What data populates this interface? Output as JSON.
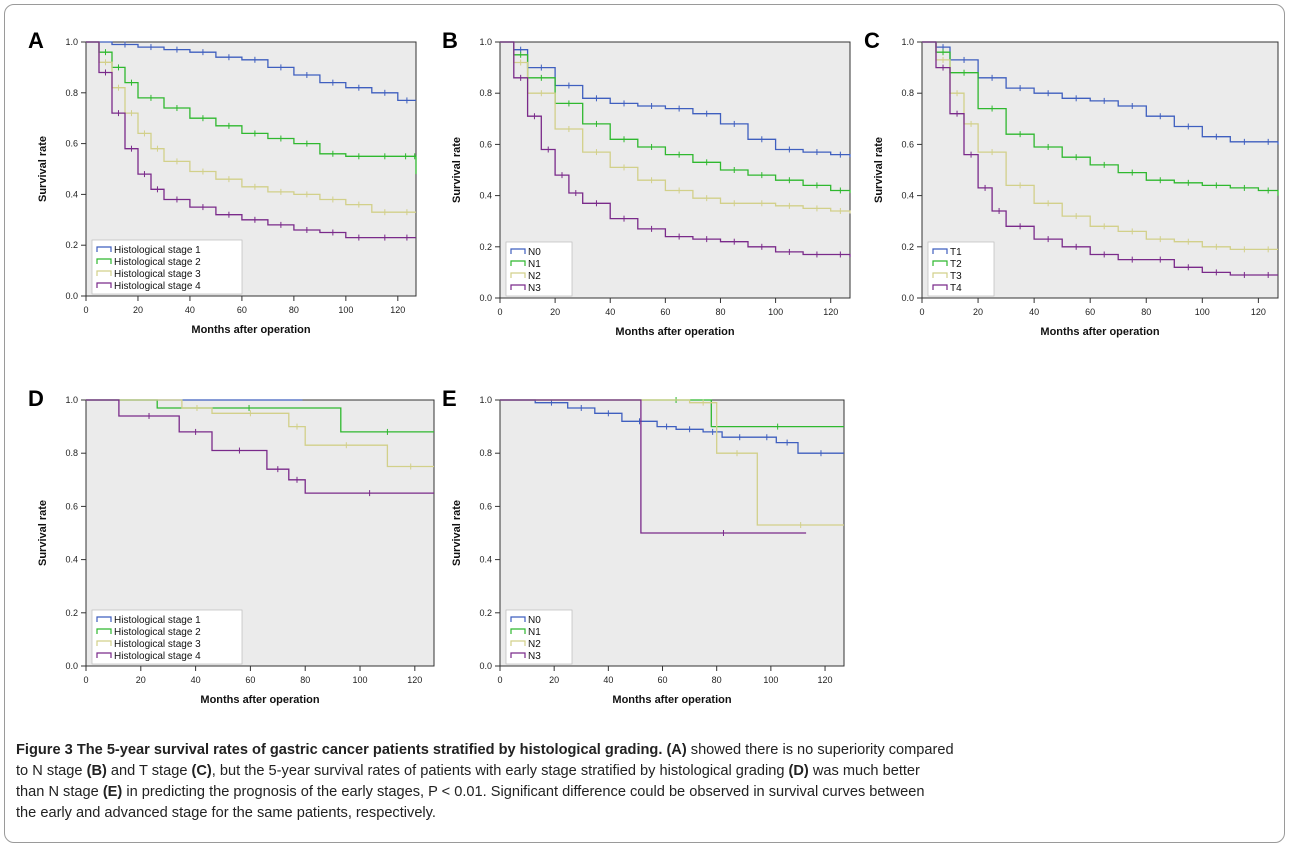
{
  "figure": {
    "caption_lines": [
      [
        {
          "b": true,
          "t": "Figure 3 The 5-year survival rates of gastric cancer patients stratified by histological grading."
        },
        {
          "b": true,
          "t": " (A)"
        },
        {
          "b": false,
          "t": " showed there is no superiority compared"
        }
      ],
      [
        {
          "b": false,
          "t": "to N stage "
        },
        {
          "b": true,
          "t": "(B)"
        },
        {
          "b": false,
          "t": " and T stage "
        },
        {
          "b": true,
          "t": "(C)"
        },
        {
          "b": false,
          "t": ", but the 5-year survival rates of patients with early stage stratified by histological grading "
        },
        {
          "b": true,
          "t": "(D)"
        },
        {
          "b": false,
          "t": " was much better"
        }
      ],
      [
        {
          "b": false,
          "t": "than N stage "
        },
        {
          "b": true,
          "t": "(E)"
        },
        {
          "b": false,
          "t": " in predicting the prognosis of the early stages, P < 0.01. Significant difference could be observed in survival curves between"
        }
      ],
      [
        {
          "b": false,
          "t": "the early and advanced stage for the same patients, respectively."
        }
      ]
    ]
  },
  "colors": {
    "s1": "#3f5fbf",
    "s2": "#2fb82f",
    "s3": "#d2d08a",
    "s4": "#7a2a8a",
    "plot_bg": "#ebebeb"
  },
  "chart_data": [
    {
      "panel": "A",
      "type": "line",
      "step": true,
      "xlabel": "Months after operation",
      "ylabel": "Survival rate",
      "xlim": [
        0,
        127
      ],
      "ylim": [
        0,
        1.0
      ],
      "xticks": [
        "0",
        "20",
        "40",
        "60",
        "80",
        "100",
        "120"
      ],
      "yticks": [
        "0.0",
        "0.2",
        "0.4",
        "0.6",
        "0.8",
        "1.0"
      ],
      "legend_position": "bottom-left",
      "series": [
        {
          "name": "Histological stage 1",
          "x": [
            0,
            10,
            20,
            30,
            40,
            50,
            60,
            70,
            80,
            90,
            100,
            110,
            120,
            127
          ],
          "y": [
            1.0,
            0.99,
            0.98,
            0.97,
            0.96,
            0.94,
            0.93,
            0.9,
            0.87,
            0.84,
            0.82,
            0.8,
            0.77,
            0.77
          ]
        },
        {
          "name": "Histological stage 2",
          "x": [
            0,
            5,
            10,
            15,
            20,
            30,
            40,
            50,
            60,
            70,
            80,
            90,
            100,
            110,
            120,
            126,
            127
          ],
          "y": [
            1.0,
            0.96,
            0.9,
            0.84,
            0.78,
            0.74,
            0.7,
            0.67,
            0.64,
            0.62,
            0.6,
            0.56,
            0.55,
            0.55,
            0.55,
            0.55,
            0.48
          ]
        },
        {
          "name": "Histological stage 3",
          "x": [
            0,
            5,
            10,
            15,
            20,
            25,
            30,
            40,
            50,
            60,
            70,
            80,
            90,
            100,
            110,
            120,
            127
          ],
          "y": [
            1.0,
            0.92,
            0.82,
            0.72,
            0.64,
            0.58,
            0.53,
            0.49,
            0.46,
            0.43,
            0.41,
            0.4,
            0.38,
            0.36,
            0.33,
            0.33,
            0.33
          ]
        },
        {
          "name": "Histological stage 4",
          "x": [
            0,
            5,
            10,
            15,
            20,
            25,
            30,
            40,
            50,
            60,
            70,
            80,
            90,
            100,
            110,
            120,
            127
          ],
          "y": [
            1.0,
            0.88,
            0.72,
            0.58,
            0.48,
            0.42,
            0.38,
            0.35,
            0.32,
            0.3,
            0.28,
            0.26,
            0.25,
            0.23,
            0.23,
            0.23,
            0.23
          ]
        }
      ]
    },
    {
      "panel": "B",
      "type": "line",
      "step": true,
      "xlabel": "Months after operation",
      "ylabel": "Survival rate",
      "xlim": [
        0,
        127
      ],
      "ylim": [
        0,
        1.0
      ],
      "xticks": [
        "0",
        "20",
        "40",
        "60",
        "80",
        "100",
        "120"
      ],
      "yticks": [
        "0.0",
        "0.2",
        "0.4",
        "0.6",
        "0.8",
        "1.0"
      ],
      "legend_position": "bottom-left",
      "series": [
        {
          "name": "N0",
          "x": [
            0,
            5,
            10,
            20,
            30,
            40,
            50,
            60,
            70,
            80,
            90,
            100,
            110,
            120,
            127
          ],
          "y": [
            1.0,
            0.97,
            0.9,
            0.83,
            0.78,
            0.76,
            0.75,
            0.74,
            0.72,
            0.68,
            0.62,
            0.58,
            0.57,
            0.56,
            0.55
          ]
        },
        {
          "name": "N1",
          "x": [
            0,
            5,
            10,
            20,
            30,
            40,
            50,
            60,
            70,
            80,
            90,
            100,
            110,
            120,
            127
          ],
          "y": [
            1.0,
            0.95,
            0.86,
            0.76,
            0.68,
            0.62,
            0.59,
            0.56,
            0.53,
            0.5,
            0.48,
            0.46,
            0.44,
            0.42,
            0.41
          ]
        },
        {
          "name": "N2",
          "x": [
            0,
            5,
            10,
            20,
            30,
            40,
            50,
            60,
            70,
            80,
            90,
            100,
            110,
            120,
            127
          ],
          "y": [
            1.0,
            0.92,
            0.8,
            0.66,
            0.57,
            0.51,
            0.46,
            0.42,
            0.39,
            0.37,
            0.37,
            0.36,
            0.35,
            0.34,
            0.33
          ]
        },
        {
          "name": "N3",
          "x": [
            0,
            5,
            10,
            15,
            20,
            25,
            30,
            40,
            50,
            60,
            70,
            80,
            90,
            100,
            110,
            120,
            127
          ],
          "y": [
            1.0,
            0.86,
            0.71,
            0.58,
            0.48,
            0.41,
            0.37,
            0.31,
            0.27,
            0.24,
            0.23,
            0.22,
            0.2,
            0.18,
            0.17,
            0.17,
            0.16
          ]
        }
      ]
    },
    {
      "panel": "C",
      "type": "line",
      "step": true,
      "xlabel": "Months after operation",
      "ylabel": "Survival rate",
      "xlim": [
        0,
        127
      ],
      "ylim": [
        0,
        1.0
      ],
      "xticks": [
        "0",
        "20",
        "40",
        "60",
        "80",
        "100",
        "120"
      ],
      "yticks": [
        "0.0",
        "0.2",
        "0.4",
        "0.6",
        "0.8",
        "1.0"
      ],
      "legend_position": "bottom-left",
      "series": [
        {
          "name": "T1",
          "x": [
            0,
            5,
            10,
            20,
            30,
            40,
            50,
            60,
            70,
            80,
            90,
            100,
            110,
            120,
            127
          ],
          "y": [
            1.0,
            0.98,
            0.93,
            0.86,
            0.82,
            0.8,
            0.78,
            0.77,
            0.75,
            0.71,
            0.67,
            0.63,
            0.61,
            0.61,
            0.6
          ]
        },
        {
          "name": "T2",
          "x": [
            0,
            5,
            10,
            20,
            30,
            40,
            50,
            60,
            70,
            80,
            90,
            100,
            110,
            120,
            127
          ],
          "y": [
            1.0,
            0.96,
            0.88,
            0.74,
            0.64,
            0.59,
            0.55,
            0.52,
            0.49,
            0.46,
            0.45,
            0.44,
            0.43,
            0.42,
            0.4
          ]
        },
        {
          "name": "T3",
          "x": [
            0,
            5,
            10,
            15,
            20,
            30,
            40,
            50,
            60,
            70,
            80,
            90,
            100,
            110,
            120,
            127
          ],
          "y": [
            1.0,
            0.93,
            0.8,
            0.68,
            0.57,
            0.44,
            0.37,
            0.32,
            0.28,
            0.26,
            0.23,
            0.22,
            0.2,
            0.19,
            0.19,
            0.19
          ]
        },
        {
          "name": "T4",
          "x": [
            0,
            5,
            10,
            15,
            20,
            25,
            30,
            40,
            50,
            60,
            70,
            80,
            90,
            100,
            110,
            120,
            127
          ],
          "y": [
            1.0,
            0.9,
            0.72,
            0.56,
            0.43,
            0.34,
            0.28,
            0.23,
            0.2,
            0.17,
            0.15,
            0.15,
            0.12,
            0.1,
            0.09,
            0.09,
            0.09
          ]
        }
      ]
    },
    {
      "panel": "D",
      "type": "line",
      "step": true,
      "xlabel": "Months after operation",
      "ylabel": "Survival rate",
      "xlim": [
        0,
        127
      ],
      "ylim": [
        0,
        1.0
      ],
      "xticks": [
        "0",
        "20",
        "40",
        "60",
        "80",
        "100",
        "120"
      ],
      "yticks": [
        "0.0",
        "0.2",
        "0.4",
        "0.6",
        "0.8",
        "1.0"
      ],
      "legend_position": "bottom-left",
      "series": [
        {
          "name": "Histological stage 1",
          "x": [
            0,
            79
          ],
          "y": [
            1.0,
            1.0
          ]
        },
        {
          "name": "Histological stage 2",
          "x": [
            0,
            26,
            93,
            127
          ],
          "y": [
            1.0,
            0.97,
            0.88,
            0.88
          ]
        },
        {
          "name": "Histological stage 3",
          "x": [
            0,
            35,
            46,
            74,
            80,
            110,
            127
          ],
          "y": [
            1.0,
            0.97,
            0.95,
            0.9,
            0.83,
            0.75,
            0.75
          ]
        },
        {
          "name": "Histological stage 4",
          "x": [
            0,
            12,
            34,
            46,
            66,
            74,
            80,
            127
          ],
          "y": [
            1.0,
            0.94,
            0.88,
            0.81,
            0.74,
            0.7,
            0.65,
            0.65
          ]
        }
      ]
    },
    {
      "panel": "E",
      "type": "line",
      "step": true,
      "xlabel": "Months after operation",
      "ylabel": "Survival rate",
      "xlim": [
        0,
        127
      ],
      "ylim": [
        0,
        1.0
      ],
      "xticks": [
        "0",
        "20",
        "40",
        "60",
        "80",
        "100",
        "120"
      ],
      "yticks": [
        "0.0",
        "0.2",
        "0.4",
        "0.6",
        "0.8",
        "1.0"
      ],
      "legend_position": "bottom-left",
      "series": [
        {
          "name": "N0",
          "x": [
            0,
            13,
            25,
            35,
            45,
            58,
            65,
            75,
            82,
            95,
            102,
            110,
            127
          ],
          "y": [
            1.0,
            0.99,
            0.97,
            0.95,
            0.92,
            0.9,
            0.89,
            0.88,
            0.86,
            0.86,
            0.84,
            0.8,
            0.8
          ]
        },
        {
          "name": "N1",
          "x": [
            0,
            52,
            78,
            127
          ],
          "y": [
            1.0,
            1.0,
            0.9,
            0.9
          ]
        },
        {
          "name": "N2",
          "x": [
            0,
            70,
            80,
            95,
            127
          ],
          "y": [
            1.0,
            0.99,
            0.8,
            0.53,
            0.53
          ]
        },
        {
          "name": "N3",
          "x": [
            0,
            52,
            113
          ],
          "y": [
            1.0,
            0.5,
            0.5
          ]
        }
      ]
    }
  ]
}
